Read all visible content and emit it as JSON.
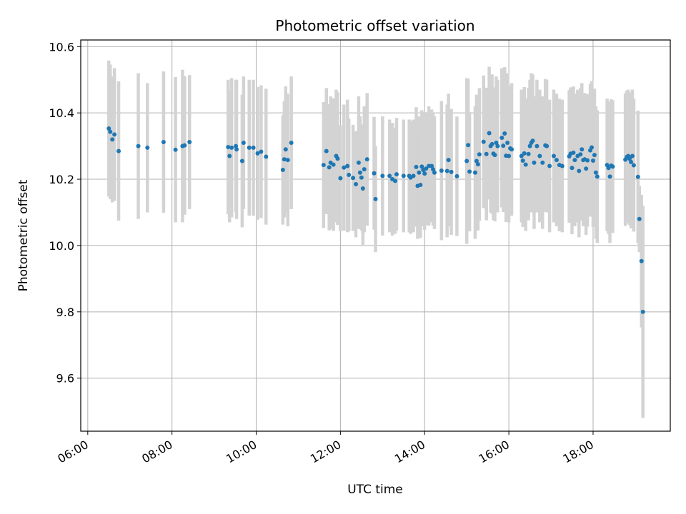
{
  "chart_data": {
    "type": "scatter",
    "title": "Photometric offset variation",
    "xlabel": "UTC time",
    "ylabel": "Photometric offset",
    "xlim": [
      "05:50",
      "19:50"
    ],
    "ylim": [
      9.44,
      10.62
    ],
    "x_ticks": [
      "06:00",
      "08:00",
      "10:00",
      "12:00",
      "14:00",
      "16:00",
      "18:00"
    ],
    "y_ticks": [
      "9.6",
      "9.8",
      "10.0",
      "10.2",
      "10.4",
      "10.6"
    ],
    "grid": true,
    "marker_color": "#1f77b4",
    "errorbar_color": "#d3d3d3",
    "points": [
      {
        "t": "06:30",
        "y": 10.353,
        "err": 0.205
      },
      {
        "t": "06:32",
        "y": 10.343,
        "err": 0.203
      },
      {
        "t": "06:35",
        "y": 10.32,
        "err": 0.19
      },
      {
        "t": "06:38",
        "y": 10.335,
        "err": 0.2
      },
      {
        "t": "06:44",
        "y": 10.285,
        "err": 0.21
      },
      {
        "t": "07:12",
        "y": 10.3,
        "err": 0.22
      },
      {
        "t": "07:25",
        "y": 10.295,
        "err": 0.195
      },
      {
        "t": "07:48",
        "y": 10.312,
        "err": 0.213
      },
      {
        "t": "08:05",
        "y": 10.289,
        "err": 0.219
      },
      {
        "t": "08:15",
        "y": 10.3,
        "err": 0.23
      },
      {
        "t": "08:18",
        "y": 10.302,
        "err": 0.209
      },
      {
        "t": "08:25",
        "y": 10.312,
        "err": 0.202
      },
      {
        "t": "09:20",
        "y": 10.297,
        "err": 0.203
      },
      {
        "t": "09:22",
        "y": 10.27,
        "err": 0.2
      },
      {
        "t": "09:25",
        "y": 10.295,
        "err": 0.21
      },
      {
        "t": "09:31",
        "y": 10.3,
        "err": 0.2
      },
      {
        "t": "09:32",
        "y": 10.29,
        "err": 0.21
      },
      {
        "t": "09:40",
        "y": 10.255,
        "err": 0.2
      },
      {
        "t": "09:42",
        "y": 10.31,
        "err": 0.2
      },
      {
        "t": "09:50",
        "y": 10.295,
        "err": 0.205
      },
      {
        "t": "09:56",
        "y": 10.295,
        "err": 0.205
      },
      {
        "t": "10:02",
        "y": 10.278,
        "err": 0.2
      },
      {
        "t": "10:07",
        "y": 10.283,
        "err": 0.2
      },
      {
        "t": "10:14",
        "y": 10.268,
        "err": 0.205
      },
      {
        "t": "10:38",
        "y": 10.228,
        "err": 0.165
      },
      {
        "t": "10:40",
        "y": 10.26,
        "err": 0.175
      },
      {
        "t": "10:42",
        "y": 10.29,
        "err": 0.19
      },
      {
        "t": "10:45",
        "y": 10.258,
        "err": 0.2
      },
      {
        "t": "10:50",
        "y": 10.31,
        "err": 0.2
      },
      {
        "t": "11:36",
        "y": 10.243,
        "err": 0.19
      },
      {
        "t": "11:40",
        "y": 10.285,
        "err": 0.19
      },
      {
        "t": "11:44",
        "y": 10.236,
        "err": 0.19
      },
      {
        "t": "11:46",
        "y": 10.25,
        "err": 0.2
      },
      {
        "t": "11:50",
        "y": 10.244,
        "err": 0.2
      },
      {
        "t": "11:54",
        "y": 10.27,
        "err": 0.2
      },
      {
        "t": "11:56",
        "y": 10.262,
        "err": 0.2
      },
      {
        "t": "12:00",
        "y": 10.203,
        "err": 0.16
      },
      {
        "t": "12:05",
        "y": 10.235,
        "err": 0.19
      },
      {
        "t": "12:10",
        "y": 10.24,
        "err": 0.2
      },
      {
        "t": "12:12",
        "y": 10.213,
        "err": 0.17
      },
      {
        "t": "12:18",
        "y": 10.204,
        "err": 0.16
      },
      {
        "t": "12:22",
        "y": 10.185,
        "err": 0.16
      },
      {
        "t": "12:26",
        "y": 10.25,
        "err": 0.2
      },
      {
        "t": "12:28",
        "y": 10.22,
        "err": 0.17
      },
      {
        "t": "12:30",
        "y": 10.205,
        "err": 0.16
      },
      {
        "t": "12:32",
        "y": 10.172,
        "err": 0.17
      },
      {
        "t": "12:34",
        "y": 10.23,
        "err": 0.19
      },
      {
        "t": "12:38",
        "y": 10.26,
        "err": 0.2
      },
      {
        "t": "12:48",
        "y": 10.218,
        "err": 0.17
      },
      {
        "t": "12:50",
        "y": 10.14,
        "err": 0.16
      },
      {
        "t": "13:00",
        "y": 10.21,
        "err": 0.18
      },
      {
        "t": "13:10",
        "y": 10.21,
        "err": 0.17
      },
      {
        "t": "13:14",
        "y": 10.2,
        "err": 0.17
      },
      {
        "t": "13:18",
        "y": 10.195,
        "err": 0.16
      },
      {
        "t": "13:20",
        "y": 10.215,
        "err": 0.17
      },
      {
        "t": "13:30",
        "y": 10.21,
        "err": 0.17
      },
      {
        "t": "13:38",
        "y": 10.21,
        "err": 0.17
      },
      {
        "t": "13:40",
        "y": 10.205,
        "err": 0.17
      },
      {
        "t": "13:44",
        "y": 10.21,
        "err": 0.17
      },
      {
        "t": "13:48",
        "y": 10.237,
        "err": 0.18
      },
      {
        "t": "13:50",
        "y": 10.18,
        "err": 0.16
      },
      {
        "t": "13:52",
        "y": 10.22,
        "err": 0.17
      },
      {
        "t": "13:54",
        "y": 10.183,
        "err": 0.16
      },
      {
        "t": "13:56",
        "y": 10.238,
        "err": 0.17
      },
      {
        "t": "13:58",
        "y": 10.228,
        "err": 0.17
      },
      {
        "t": "14:00",
        "y": 10.217,
        "err": 0.17
      },
      {
        "t": "14:02",
        "y": 10.232,
        "err": 0.17
      },
      {
        "t": "14:06",
        "y": 10.24,
        "err": 0.18
      },
      {
        "t": "14:10",
        "y": 10.24,
        "err": 0.17
      },
      {
        "t": "14:12",
        "y": 10.23,
        "err": 0.17
      },
      {
        "t": "14:14",
        "y": 10.22,
        "err": 0.17
      },
      {
        "t": "14:24",
        "y": 10.226,
        "err": 0.21
      },
      {
        "t": "14:32",
        "y": 10.225,
        "err": 0.2
      },
      {
        "t": "14:34",
        "y": 10.258,
        "err": 0.2
      },
      {
        "t": "14:38",
        "y": 10.222,
        "err": 0.19
      },
      {
        "t": "14:46",
        "y": 10.209,
        "err": 0.18
      },
      {
        "t": "15:00",
        "y": 10.255,
        "err": 0.25
      },
      {
        "t": "15:02",
        "y": 10.303,
        "err": 0.2
      },
      {
        "t": "15:04",
        "y": 10.223,
        "err": 0.18
      },
      {
        "t": "15:12",
        "y": 10.22,
        "err": 0.2
      },
      {
        "t": "15:14",
        "y": 10.255,
        "err": 0.2
      },
      {
        "t": "15:16",
        "y": 10.245,
        "err": 0.2
      },
      {
        "t": "15:18",
        "y": 10.275,
        "err": 0.2
      },
      {
        "t": "15:24",
        "y": 10.313,
        "err": 0.2
      },
      {
        "t": "15:28",
        "y": 10.276,
        "err": 0.2
      },
      {
        "t": "15:32",
        "y": 10.339,
        "err": 0.2
      },
      {
        "t": "15:34",
        "y": 10.3,
        "err": 0.2
      },
      {
        "t": "15:36",
        "y": 10.306,
        "err": 0.21
      },
      {
        "t": "15:38",
        "y": 10.277,
        "err": 0.2
      },
      {
        "t": "15:40",
        "y": 10.273,
        "err": 0.2
      },
      {
        "t": "15:42",
        "y": 10.31,
        "err": 0.2
      },
      {
        "t": "15:44",
        "y": 10.3,
        "err": 0.2
      },
      {
        "t": "15:50",
        "y": 10.325,
        "err": 0.21
      },
      {
        "t": "15:52",
        "y": 10.301,
        "err": 0.2
      },
      {
        "t": "15:54",
        "y": 10.338,
        "err": 0.2
      },
      {
        "t": "15:56",
        "y": 10.271,
        "err": 0.2
      },
      {
        "t": "15:58",
        "y": 10.31,
        "err": 0.21
      },
      {
        "t": "16:00",
        "y": 10.27,
        "err": 0.2
      },
      {
        "t": "16:02",
        "y": 10.293,
        "err": 0.19
      },
      {
        "t": "16:04",
        "y": 10.29,
        "err": 0.2
      },
      {
        "t": "16:18",
        "y": 10.27,
        "err": 0.2
      },
      {
        "t": "16:20",
        "y": 10.256,
        "err": 0.2
      },
      {
        "t": "16:22",
        "y": 10.278,
        "err": 0.2
      },
      {
        "t": "16:24",
        "y": 10.244,
        "err": 0.2
      },
      {
        "t": "16:28",
        "y": 10.276,
        "err": 0.2
      },
      {
        "t": "16:30",
        "y": 10.3,
        "err": 0.2
      },
      {
        "t": "16:32",
        "y": 10.31,
        "err": 0.21
      },
      {
        "t": "16:34",
        "y": 10.316,
        "err": 0.2
      },
      {
        "t": "16:36",
        "y": 10.25,
        "err": 0.2
      },
      {
        "t": "16:40",
        "y": 10.3,
        "err": 0.2
      },
      {
        "t": "16:44",
        "y": 10.27,
        "err": 0.2
      },
      {
        "t": "16:48",
        "y": 10.25,
        "err": 0.2
      },
      {
        "t": "16:52",
        "y": 10.302,
        "err": 0.2
      },
      {
        "t": "16:54",
        "y": 10.3,
        "err": 0.2
      },
      {
        "t": "16:58",
        "y": 10.24,
        "err": 0.2
      },
      {
        "t": "17:04",
        "y": 10.27,
        "err": 0.2
      },
      {
        "t": "17:08",
        "y": 10.258,
        "err": 0.2
      },
      {
        "t": "17:12",
        "y": 10.243,
        "err": 0.2
      },
      {
        "t": "17:16",
        "y": 10.24,
        "err": 0.2
      },
      {
        "t": "17:26",
        "y": 10.269,
        "err": 0.2
      },
      {
        "t": "17:28",
        "y": 10.277,
        "err": 0.2
      },
      {
        "t": "17:30",
        "y": 10.234,
        "err": 0.2
      },
      {
        "t": "17:32",
        "y": 10.28,
        "err": 0.2
      },
      {
        "t": "17:34",
        "y": 10.258,
        "err": 0.2
      },
      {
        "t": "17:38",
        "y": 10.27,
        "err": 0.2
      },
      {
        "t": "17:40",
        "y": 10.225,
        "err": 0.2
      },
      {
        "t": "17:42",
        "y": 10.275,
        "err": 0.2
      },
      {
        "t": "17:44",
        "y": 10.29,
        "err": 0.2
      },
      {
        "t": "17:46",
        "y": 10.258,
        "err": 0.2
      },
      {
        "t": "17:48",
        "y": 10.26,
        "err": 0.2
      },
      {
        "t": "17:50",
        "y": 10.232,
        "err": 0.2
      },
      {
        "t": "17:52",
        "y": 10.257,
        "err": 0.2
      },
      {
        "t": "17:56",
        "y": 10.287,
        "err": 0.2
      },
      {
        "t": "17:58",
        "y": 10.296,
        "err": 0.2
      },
      {
        "t": "18:00",
        "y": 10.256,
        "err": 0.2
      },
      {
        "t": "18:02",
        "y": 10.273,
        "err": 0.2
      },
      {
        "t": "18:04",
        "y": 10.22,
        "err": 0.2
      },
      {
        "t": "18:06",
        "y": 10.208,
        "err": 0.2
      },
      {
        "t": "18:20",
        "y": 10.243,
        "err": 0.2
      },
      {
        "t": "18:22",
        "y": 10.234,
        "err": 0.2
      },
      {
        "t": "18:24",
        "y": 10.208,
        "err": 0.2
      },
      {
        "t": "18:26",
        "y": 10.241,
        "err": 0.2
      },
      {
        "t": "18:28",
        "y": 10.238,
        "err": 0.2
      },
      {
        "t": "18:46",
        "y": 10.259,
        "err": 0.2
      },
      {
        "t": "18:48",
        "y": 10.267,
        "err": 0.2
      },
      {
        "t": "18:50",
        "y": 10.27,
        "err": 0.2
      },
      {
        "t": "18:52",
        "y": 10.262,
        "err": 0.2
      },
      {
        "t": "18:54",
        "y": 10.252,
        "err": 0.2
      },
      {
        "t": "18:56",
        "y": 10.27,
        "err": 0.2
      },
      {
        "t": "18:58",
        "y": 10.242,
        "err": 0.2
      },
      {
        "t": "19:04",
        "y": 10.207,
        "err": 0.2
      },
      {
        "t": "19:06",
        "y": 10.08,
        "err": 0.1
      },
      {
        "t": "19:09",
        "y": 9.953,
        "err": 0.2
      },
      {
        "t": "19:11",
        "y": 9.8,
        "err": 0.32
      }
    ]
  }
}
